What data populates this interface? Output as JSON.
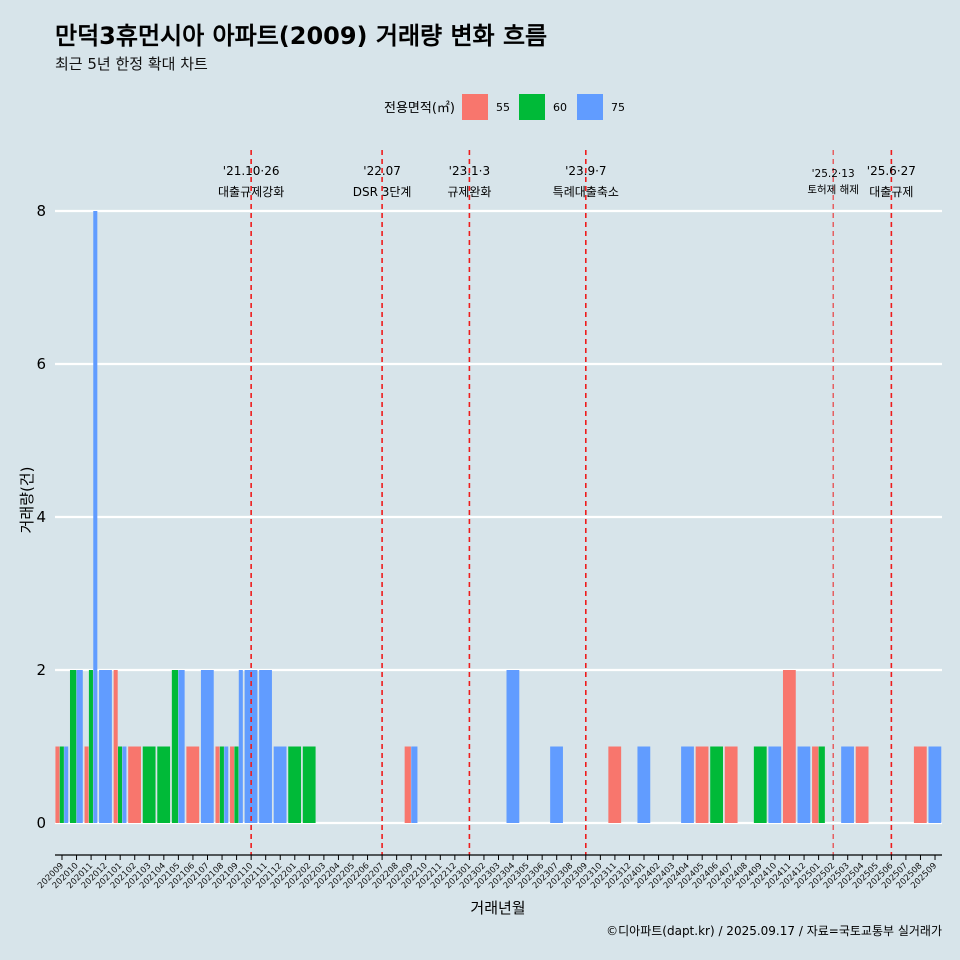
{
  "chart_data": {
    "type": "bar",
    "title": "만덕3휴먼시아 아파트(2009) 거래량 변화 흐름",
    "subtitle": "최근 5년 한정 확대 차트",
    "xlabel": "거래년월",
    "ylabel": "거래량(건)",
    "ylim": [
      0,
      8
    ],
    "yticks": [
      0,
      2,
      4,
      6,
      8
    ],
    "grid": "horizontal",
    "legend": {
      "title": "전용면적(㎡)",
      "position": "top"
    },
    "caption": "©디아파트(dapt.kr) / 2025.09.17 / 자료=국토교통부 실거래가",
    "months": [
      "202009",
      "202010",
      "202011",
      "202012",
      "202101",
      "202102",
      "202103",
      "202104",
      "202105",
      "202106",
      "202107",
      "202108",
      "202109",
      "202110",
      "202111",
      "202112",
      "202201",
      "202202",
      "202203",
      "202204",
      "202205",
      "202206",
      "202207",
      "202208",
      "202209",
      "202210",
      "202211",
      "202212",
      "202301",
      "202302",
      "202303",
      "202304",
      "202305",
      "202306",
      "202307",
      "202308",
      "202309",
      "202310",
      "202311",
      "202312",
      "202401",
      "202402",
      "202403",
      "202404",
      "202405",
      "202406",
      "202407",
      "202408",
      "202409",
      "202410",
      "202411",
      "202412",
      "202501",
      "202502",
      "202503",
      "202504",
      "202505",
      "202506",
      "202507",
      "202508",
      "202509"
    ],
    "series": [
      {
        "name": "55",
        "color": "#f8766d"
      },
      {
        "name": "60",
        "color": "#00ba38"
      },
      {
        "name": "75",
        "color": "#619cff"
      }
    ],
    "bars": [
      {
        "month": "202009",
        "values": {
          "55": 1,
          "60": 1,
          "75": 1
        }
      },
      {
        "month": "202010",
        "values": {
          "60": 2,
          "75": 2
        }
      },
      {
        "month": "202011",
        "values": {
          "55": 1,
          "60": 2,
          "75": 8
        }
      },
      {
        "month": "202012",
        "values": {
          "75": 2
        }
      },
      {
        "month": "202101",
        "values": {
          "55": 2,
          "60": 1,
          "75": 1
        }
      },
      {
        "month": "202102",
        "values": {
          "55": 1
        }
      },
      {
        "month": "202103",
        "values": {
          "60": 1
        }
      },
      {
        "month": "202104",
        "values": {
          "60": 1
        }
      },
      {
        "month": "202105",
        "values": {
          "60": 2,
          "75": 2
        }
      },
      {
        "month": "202106",
        "values": {
          "55": 1
        }
      },
      {
        "month": "202107",
        "values": {
          "75": 2
        }
      },
      {
        "month": "202108",
        "values": {
          "55": 1,
          "60": 1,
          "75": 1
        }
      },
      {
        "month": "202109",
        "values": {
          "55": 1,
          "60": 1,
          "75": 2
        }
      },
      {
        "month": "202110",
        "values": {
          "75": 2
        }
      },
      {
        "month": "202111",
        "values": {
          "75": 2
        }
      },
      {
        "month": "202112",
        "values": {
          "75": 1
        }
      },
      {
        "month": "202201",
        "values": {
          "60": 1
        }
      },
      {
        "month": "202202",
        "values": {
          "60": 1
        }
      },
      {
        "month": "202209",
        "values": {
          "55": 1,
          "75": 1
        }
      },
      {
        "month": "202304",
        "values": {
          "75": 2
        }
      },
      {
        "month": "202307",
        "values": {
          "75": 1
        }
      },
      {
        "month": "202311",
        "values": {
          "55": 1
        }
      },
      {
        "month": "202401",
        "values": {
          "75": 1
        }
      },
      {
        "month": "202404",
        "values": {
          "75": 1
        }
      },
      {
        "month": "202405",
        "values": {
          "55": 1
        }
      },
      {
        "month": "202406",
        "values": {
          "60": 1
        }
      },
      {
        "month": "202407",
        "values": {
          "55": 1
        }
      },
      {
        "month": "202409",
        "values": {
          "60": 1
        }
      },
      {
        "month": "202410",
        "values": {
          "75": 1
        }
      },
      {
        "month": "202411",
        "values": {
          "55": 2
        }
      },
      {
        "month": "202412",
        "values": {
          "75": 1
        }
      },
      {
        "month": "202501",
        "values": {
          "55": 1,
          "60": 1
        }
      },
      {
        "month": "202503",
        "values": {
          "75": 1
        }
      },
      {
        "month": "202504",
        "values": {
          "55": 1
        }
      },
      {
        "month": "202508",
        "values": {
          "55": 1
        }
      },
      {
        "month": "202509",
        "values": {
          "75": 1
        }
      }
    ],
    "events": [
      {
        "month": "202110",
        "date": "'21.10·26",
        "label": "대출규제강화",
        "style": "major"
      },
      {
        "month": "202207",
        "date": "'22.07",
        "label": "DSR 3단계",
        "style": "major"
      },
      {
        "month": "202301",
        "date": "'23.1·3",
        "label": "규제완화",
        "style": "major"
      },
      {
        "month": "202309",
        "date": "'23.9·7",
        "label": "특례대출축소",
        "style": "major"
      },
      {
        "month": "202502",
        "date": "'25.2·13",
        "label": "토허제 해제",
        "style": "minor"
      },
      {
        "month": "202506",
        "date": "'25.6·27",
        "label": "대출규제",
        "style": "major"
      }
    ]
  }
}
